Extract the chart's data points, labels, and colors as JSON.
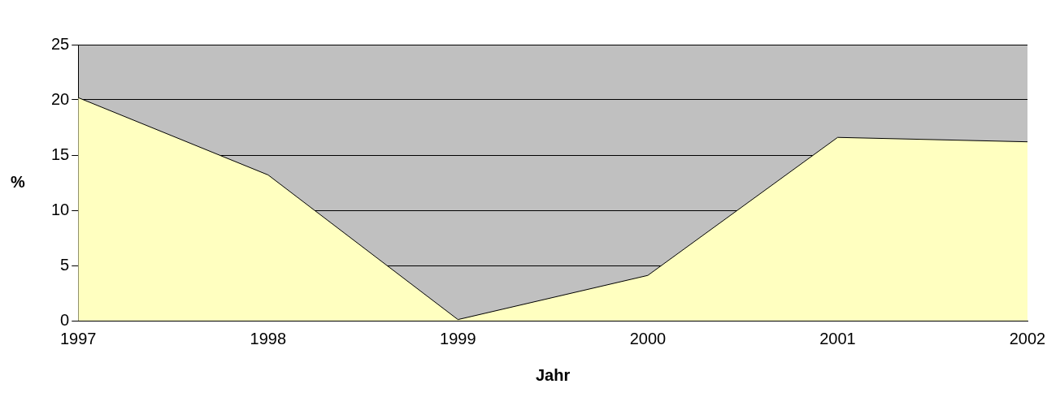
{
  "chart_data": {
    "type": "area",
    "xlabel": "Jahr",
    "ylabel": "%",
    "categories": [
      "1997",
      "1998",
      "1999",
      "2000",
      "2001",
      "2002"
    ],
    "values": [
      20.2,
      13.2,
      0.1,
      4.1,
      16.6,
      16.2
    ],
    "color": "#ffffc0",
    "ylim": [
      0,
      25
    ],
    "yticks": [
      0,
      5,
      10,
      15,
      20,
      25
    ],
    "grid": "y",
    "legend": false
  }
}
